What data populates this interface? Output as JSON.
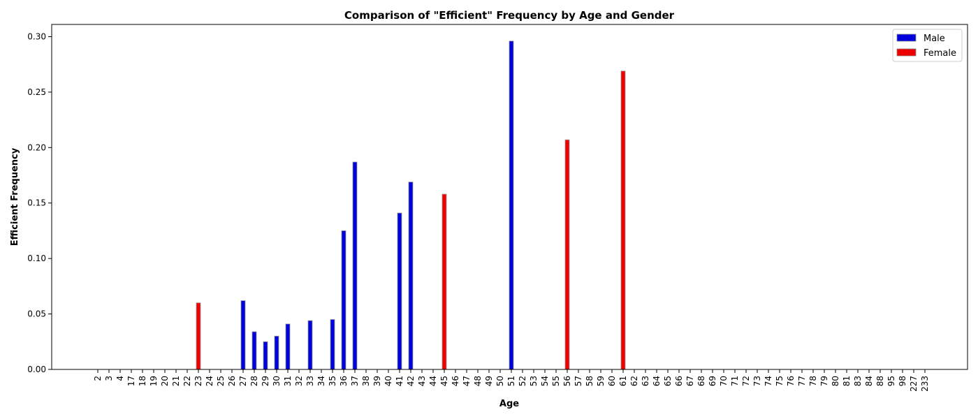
{
  "chart_data": {
    "type": "bar",
    "title": "Comparison of \"Efficient\" Frequency by Age and Gender",
    "xlabel": "Age",
    "ylabel": "Efficient Frequency",
    "ylim": [
      0,
      0.311
    ],
    "yticks": [
      "0.00",
      "0.05",
      "0.10",
      "0.15",
      "0.20",
      "0.25",
      "0.30"
    ],
    "grid": false,
    "legend_position": "top-right",
    "categories": [
      "2",
      "3",
      "4",
      "17",
      "18",
      "19",
      "20",
      "21",
      "22",
      "23",
      "24",
      "25",
      "26",
      "27",
      "28",
      "29",
      "30",
      "31",
      "32",
      "33",
      "34",
      "35",
      "36",
      "37",
      "38",
      "39",
      "40",
      "41",
      "42",
      "43",
      "44",
      "45",
      "46",
      "47",
      "48",
      "49",
      "50",
      "51",
      "52",
      "53",
      "54",
      "55",
      "56",
      "57",
      "58",
      "59",
      "60",
      "61",
      "62",
      "63",
      "64",
      "65",
      "66",
      "67",
      "68",
      "69",
      "70",
      "71",
      "72",
      "73",
      "74",
      "75",
      "76",
      "77",
      "78",
      "79",
      "80",
      "81",
      "83",
      "84",
      "88",
      "95",
      "98",
      "227",
      "233"
    ],
    "series": [
      {
        "name": "Male",
        "color": "#0000dd",
        "values": [
          0,
          0,
          0,
          0,
          0,
          0,
          0,
          0,
          0,
          0,
          0,
          0,
          0,
          0.062,
          0.034,
          0.025,
          0.03,
          0.041,
          0,
          0.044,
          0,
          0.045,
          0.125,
          0.187,
          0,
          0,
          0,
          0.141,
          0.169,
          0,
          0,
          0,
          0,
          0,
          0,
          0,
          0,
          0.296,
          0,
          0,
          0,
          0,
          0,
          0,
          0,
          0,
          0,
          0,
          0,
          0,
          0,
          0,
          0,
          0,
          0,
          0,
          0,
          0,
          0,
          0,
          0,
          0,
          0,
          0,
          0,
          0,
          0,
          0,
          0,
          0,
          0,
          0,
          0,
          0,
          0
        ]
      },
      {
        "name": "Female",
        "color": "#ee0000",
        "values": [
          0,
          0,
          0,
          0,
          0,
          0,
          0,
          0,
          0,
          0.06,
          0,
          0,
          0,
          0,
          0,
          0,
          0,
          0,
          0,
          0,
          0,
          0,
          0,
          0,
          0,
          0,
          0,
          0,
          0,
          0,
          0,
          0.158,
          0,
          0,
          0,
          0,
          0,
          0,
          0,
          0,
          0,
          0,
          0.207,
          0,
          0,
          0,
          0,
          0.269,
          0,
          0,
          0,
          0,
          0,
          0,
          0,
          0,
          0,
          0,
          0,
          0,
          0,
          0,
          0,
          0,
          0,
          0,
          0,
          0,
          0,
          0,
          0,
          0,
          0,
          0,
          0
        ]
      }
    ]
  }
}
